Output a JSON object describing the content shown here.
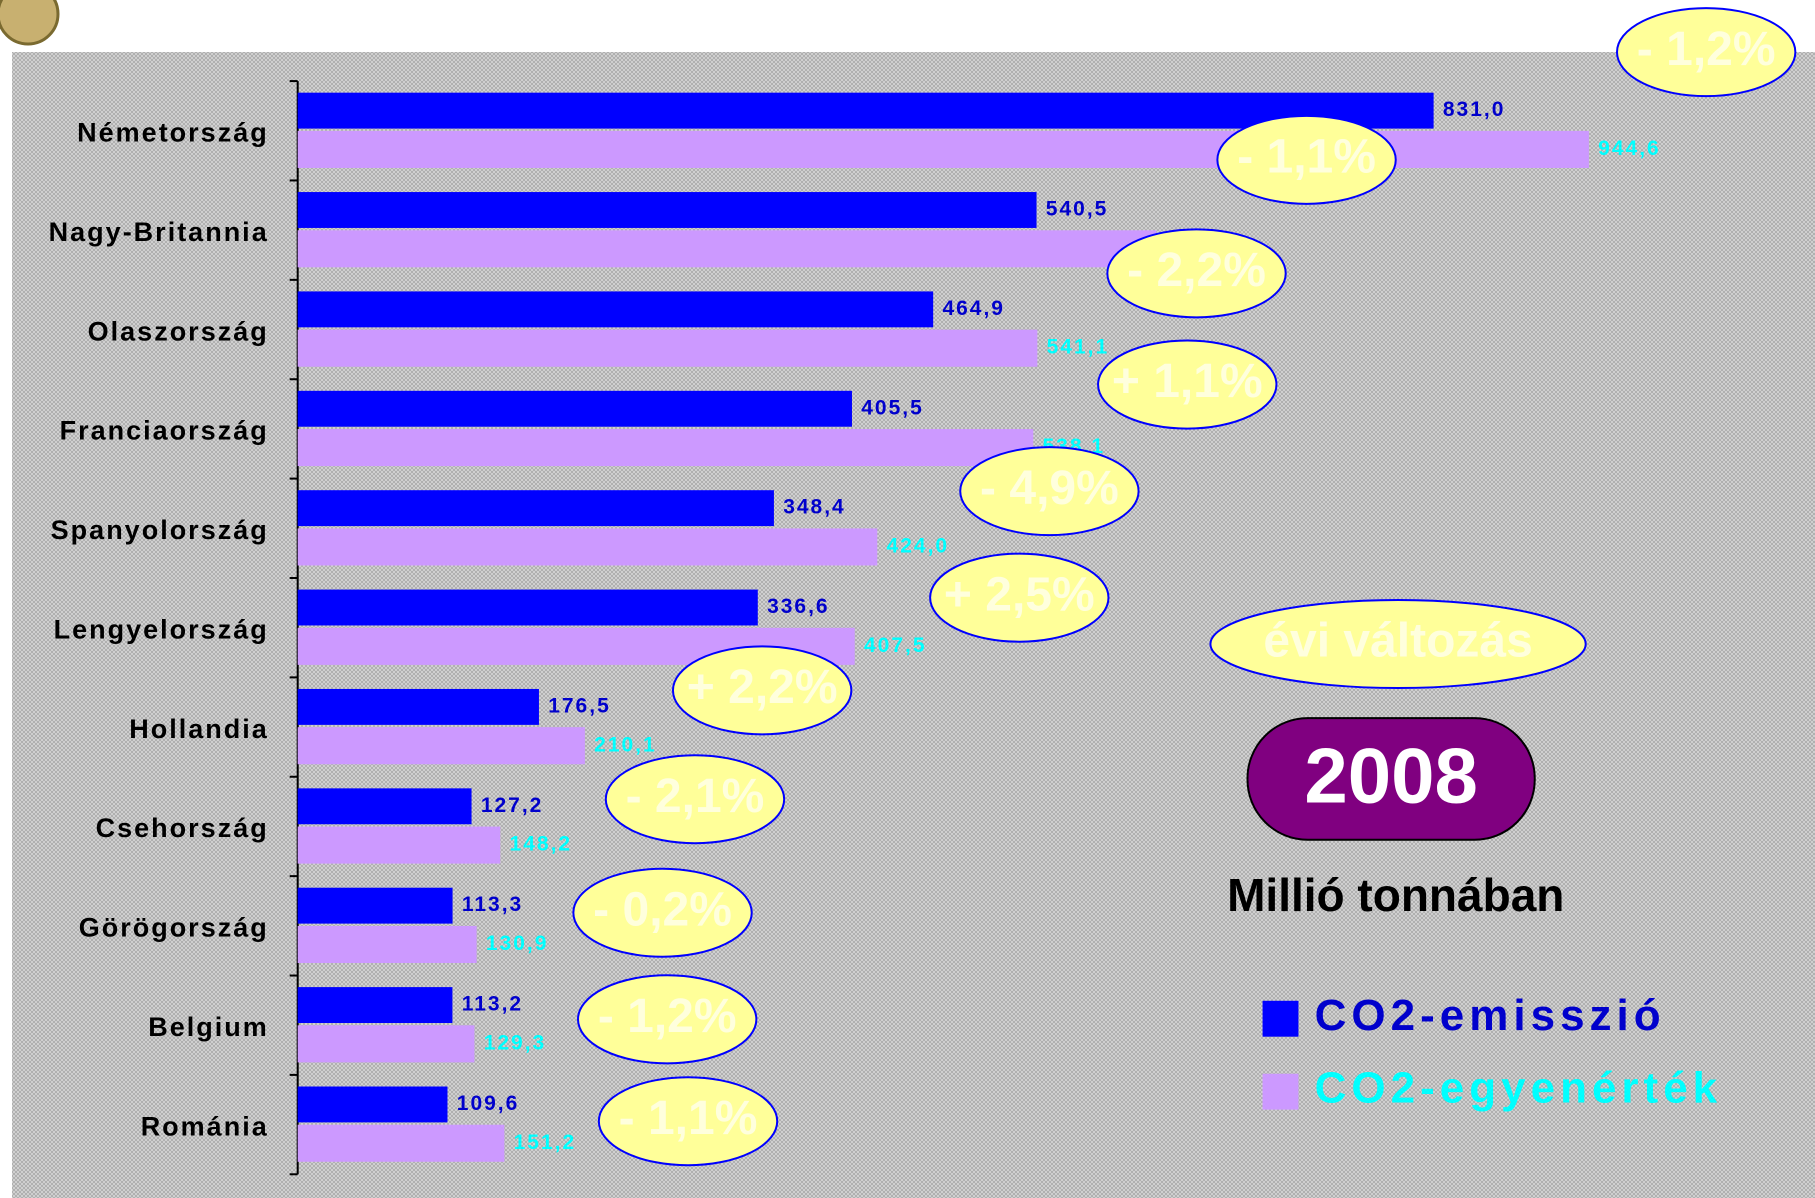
{
  "chart_data": {
    "type": "barh",
    "categories": [
      "Németország",
      "Nagy-Britannia",
      "Olaszország",
      "Franciaország",
      "Spanyolország",
      "Lengyelország",
      "Hollandia",
      "Csehország",
      "Görögország",
      "Belgium",
      "Románia"
    ],
    "series": [
      {
        "name": "CO2-emisszió",
        "color": "#0000ff",
        "label_color": "#0000cc",
        "values": [
          831.0,
          540.5,
          464.9,
          405.5,
          348.4,
          336.6,
          176.5,
          127.2,
          113.3,
          113.2,
          109.6
        ],
        "value_labels": [
          "831,0",
          "540,5",
          "464,9",
          "405,5",
          "348,4",
          "336,6",
          "176,5",
          "127,2",
          "113,3",
          "113,2",
          "109,6"
        ]
      },
      {
        "name": "CO2-egyenérték",
        "color": "#cc99ff",
        "label_color": "#00ffff",
        "values": [
          944.6,
          628.2,
          541.1,
          538.1,
          424.0,
          407.5,
          210.1,
          148.2,
          130.9,
          129.3,
          151.2
        ],
        "value_labels": [
          "944,6",
          "628,2",
          "541,1",
          "538,1",
          "424,0",
          "407,5",
          "210,1",
          "148,2",
          "130,9",
          "129,3",
          "151,2"
        ]
      }
    ],
    "xlim": [
      0,
      1110
    ],
    "annotations": {
      "changes": [
        "- 1,2%",
        "- 1,1%",
        "- 2,2%",
        "+ 1,1%",
        "- 4,9%",
        "+ 2,5%",
        "+ 2,2%",
        "- 2,1%",
        "- 0,2%",
        "- 1,2%",
        "- 1,1%"
      ],
      "change_note": "évi változás",
      "year": "2008",
      "unit": "Millió tonnában"
    }
  }
}
